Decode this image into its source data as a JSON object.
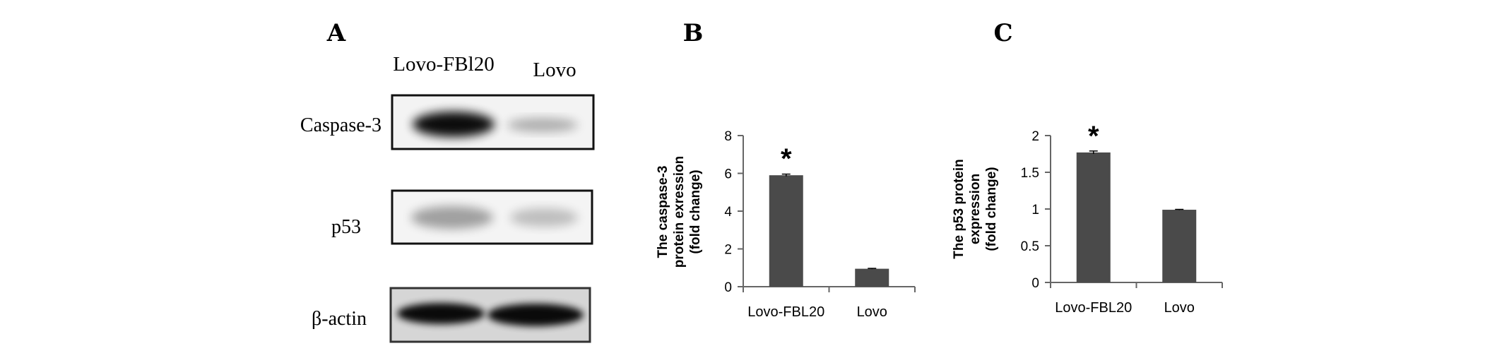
{
  "panels": {
    "a": {
      "letter": "A",
      "lanes": [
        "Lovo-FBl20",
        "Lovo"
      ],
      "blots": [
        {
          "label": "Caspase-3",
          "intensities": [
            1.0,
            0.35
          ]
        },
        {
          "label": "p53",
          "intensities": [
            0.4,
            0.28
          ]
        },
        {
          "label": "β-actin",
          "intensities": [
            0.95,
            0.95
          ]
        }
      ]
    },
    "b": {
      "letter": "B"
    },
    "c": {
      "letter": "C"
    }
  },
  "chart_data": [
    {
      "type": "bar",
      "categories": [
        "Lovo-FBL20",
        "Lovo"
      ],
      "values": [
        5.9,
        0.95
      ],
      "errors": [
        0.06,
        0.02
      ],
      "significance": [
        "*",
        ""
      ],
      "ylabel_lines": [
        "The caspase-3",
        "protein exression",
        "(fold change)"
      ],
      "ylim": [
        0,
        8
      ],
      "yticks": [
        0,
        2,
        4,
        6,
        8
      ],
      "bar_color": "#4a4a4a"
    },
    {
      "type": "bar",
      "categories": [
        "Lovo-FBL20",
        "Lovo"
      ],
      "values": [
        1.77,
        0.99
      ],
      "errors": [
        0.02,
        0.005
      ],
      "significance": [
        "*",
        ""
      ],
      "ylabel_lines": [
        "The p53 protein",
        "expression",
        "(fold change)"
      ],
      "ylim": [
        0,
        2
      ],
      "yticks": [
        0,
        0.5,
        1,
        1.5,
        2
      ],
      "bar_color": "#4a4a4a"
    }
  ]
}
